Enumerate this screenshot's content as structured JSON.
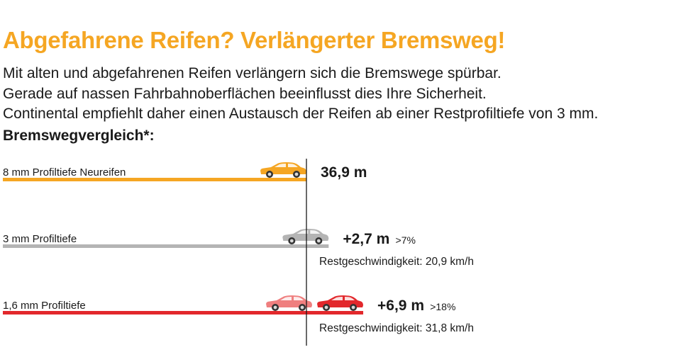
{
  "header": {
    "title": "Abgefahrene Reifen? Verlängerter Bremsweg!",
    "intro": [
      "Mit alten und abgefahrenen Reifen verlängern sich die Bremswege spürbar.",
      "Gerade auf nassen Fahrbahnoberflächen beeinflusst dies Ihre Sicherheit.",
      "Continental empfiehlt daher einen Austausch der Reifen ab einer Restprofiltiefe von 3 mm."
    ],
    "subtitle": "Bremswegvergleich*:"
  },
  "colors": {
    "title": "#f5a623",
    "new_tire": "#f5a623",
    "three_mm": "#b4b4b4",
    "one_six_mm": "#e2282c",
    "one_six_mm_light": "#ef7f7f",
    "reference_line": "#1a1a1a"
  },
  "chart_data": {
    "type": "bar",
    "orientation": "horizontal",
    "unit": "m",
    "categories": [
      "8 mm Profiltiefe Neureifen",
      "3 mm Profiltiefe",
      "1,6 mm Profiltiefe"
    ],
    "values": [
      36.9,
      39.6,
      43.8
    ],
    "reference_value": 36.9,
    "labels": [
      {
        "main": "36,9 m",
        "pct": "",
        "speed": ""
      },
      {
        "main": "+2,7 m",
        "pct": ">7%",
        "speed": "Restgeschwindigkeit: 20,9 km/h"
      },
      {
        "main": "+6,9 m",
        "pct": ">18%",
        "speed": "Restgeschwindigkeit: 31,8 km/h"
      }
    ],
    "icons": [
      [
        {
          "name": "car-icon",
          "color": "#f5a623"
        }
      ],
      [
        {
          "name": "car-icon",
          "color": "#b4b4b4"
        }
      ],
      [
        {
          "name": "car-icon",
          "color": "#ef7f7f"
        },
        {
          "name": "car-icon",
          "color": "#e2282c"
        }
      ]
    ]
  }
}
